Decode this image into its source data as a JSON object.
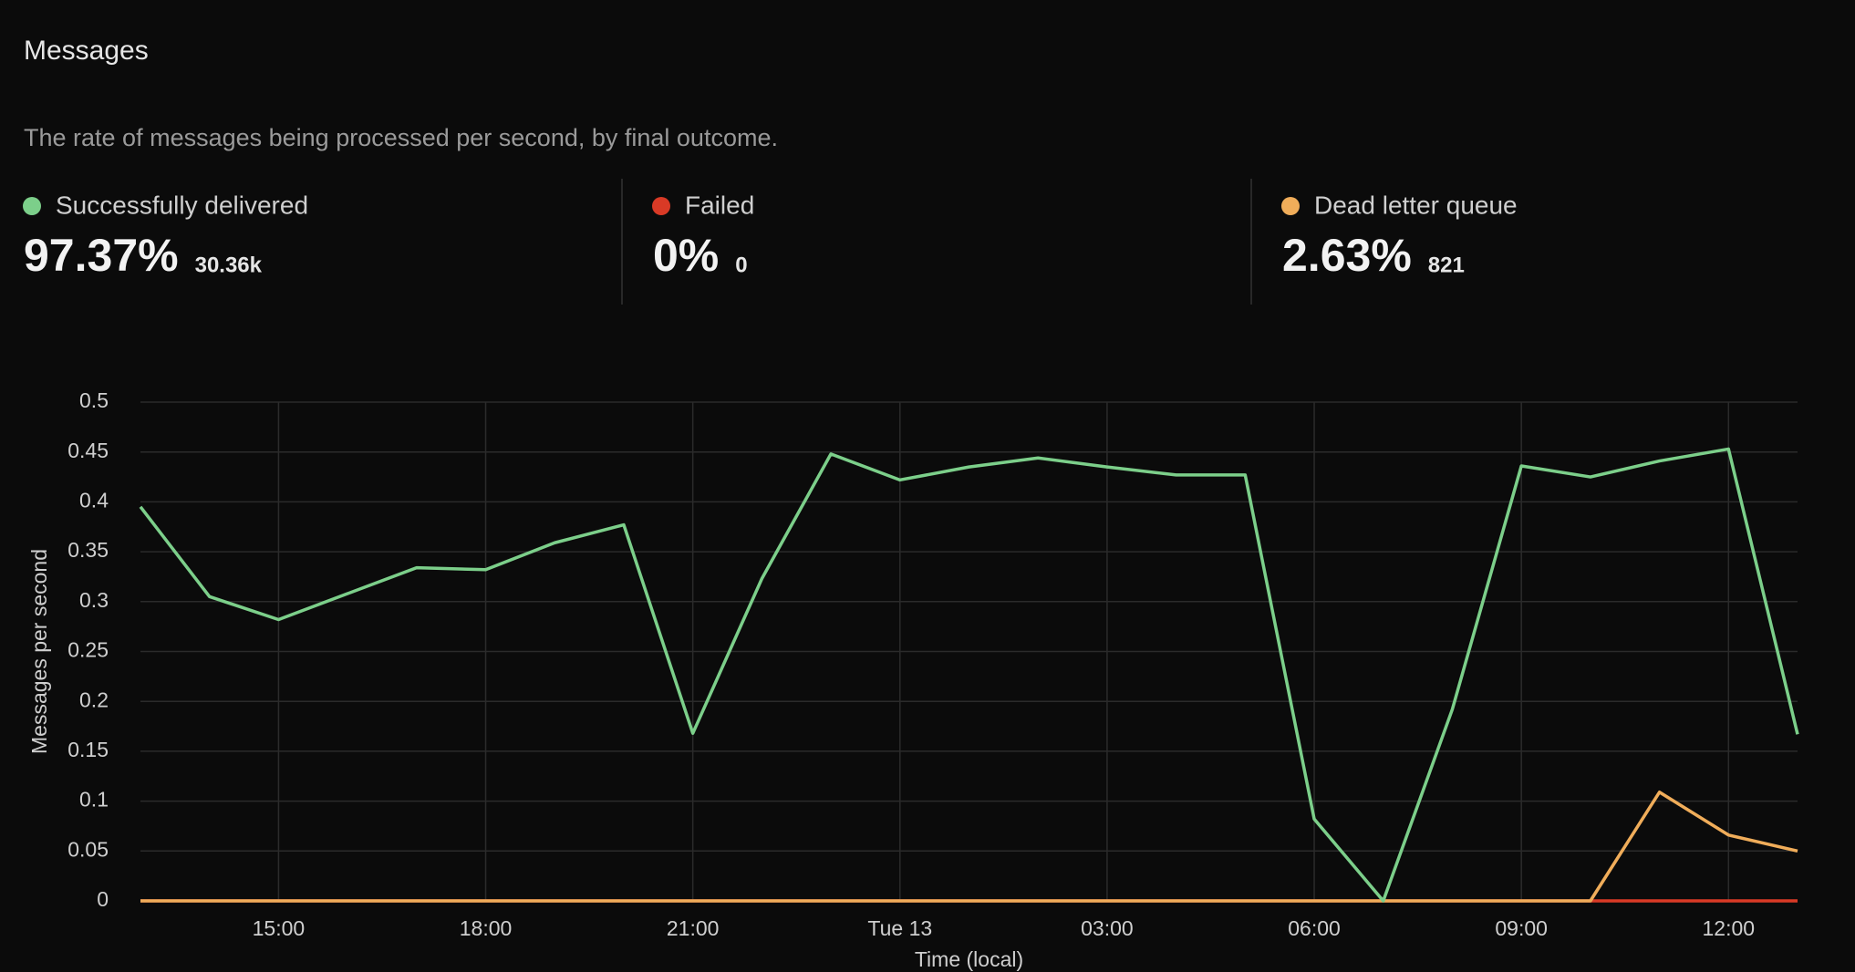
{
  "title": "Messages",
  "subtitle": "The rate of messages being processed per second, by final outcome.",
  "chart_data": {
    "type": "line",
    "x_label": "Time (local)",
    "y_label": "Messages per second",
    "x": [
      13,
      14,
      15,
      16,
      17,
      18,
      19,
      20,
      21,
      22,
      23,
      24,
      25,
      26,
      27,
      28,
      29,
      30,
      31,
      32,
      33,
      34,
      35,
      36,
      37
    ],
    "xlim": [
      13,
      37
    ],
    "xticks": [
      {
        "value": 15,
        "label": "15:00"
      },
      {
        "value": 18,
        "label": "18:00"
      },
      {
        "value": 21,
        "label": "21:00"
      },
      {
        "value": 24,
        "label": "Tue 13"
      },
      {
        "value": 27,
        "label": "03:00"
      },
      {
        "value": 30,
        "label": "06:00"
      },
      {
        "value": 33,
        "label": "09:00"
      },
      {
        "value": 36,
        "label": "12:00"
      }
    ],
    "ylim": [
      0,
      0.5
    ],
    "yticks": [
      0,
      0.05,
      0.1,
      0.15,
      0.2,
      0.25,
      0.3,
      0.35,
      0.4,
      0.45,
      0.5
    ],
    "grid": true,
    "series": [
      {
        "name": "Successfully delivered",
        "color": "#7ccf8a",
        "share": "97.37%",
        "count": "30.36k",
        "values": [
          0.395,
          0.305,
          0.282,
          0.308,
          0.334,
          0.332,
          0.359,
          0.377,
          0.168,
          0.323,
          0.448,
          0.422,
          0.435,
          0.444,
          0.435,
          0.427,
          0.427,
          0.082,
          0,
          0.192,
          0.436,
          0.425,
          0.441,
          0.453,
          0.167
        ]
      },
      {
        "name": "Failed",
        "color": "#d93a26",
        "share": "0%",
        "count": "0",
        "values": [
          0,
          0,
          0,
          0,
          0,
          0,
          0,
          0,
          0,
          0,
          0,
          0,
          0,
          0,
          0,
          0,
          0,
          0,
          0,
          0,
          0,
          0,
          0,
          0,
          0
        ]
      },
      {
        "name": "Dead letter queue",
        "color": "#f0ad5a",
        "share": "2.63%",
        "count": "821",
        "values": [
          0,
          0,
          0,
          0,
          0,
          0,
          0,
          0,
          0,
          0,
          0,
          0,
          0,
          0,
          0,
          0,
          0,
          0,
          0,
          0,
          0,
          0,
          0.109,
          0.066,
          0.05
        ]
      }
    ]
  }
}
